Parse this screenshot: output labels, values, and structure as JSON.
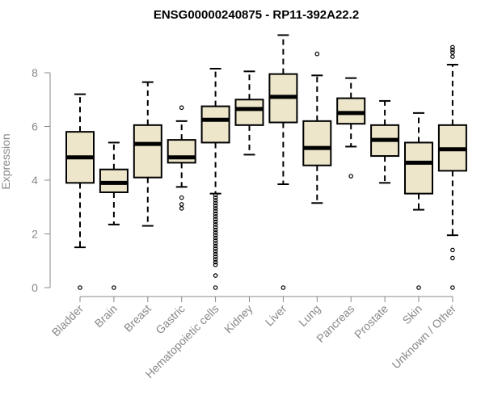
{
  "chart_data": {
    "type": "boxplot",
    "title": "ENSG00000240875 - RP11-392A22.2",
    "xlabel": "",
    "ylabel": "Expression",
    "ylim": [
      0,
      9.5
    ],
    "yticks": [
      0,
      2,
      4,
      6,
      8
    ],
    "box_color": "#ede6ca",
    "categories": [
      "Bladder",
      "Brain",
      "Breast",
      "Gastric",
      "Hematopoietic cells",
      "Kidney",
      "Liver",
      "Lung",
      "Pancreas",
      "Prostate",
      "Skin",
      "Unknown / Other"
    ],
    "boxes": [
      {
        "name": "Bladder",
        "whislo": 1.5,
        "q1": 3.9,
        "med": 4.85,
        "q3": 5.8,
        "whishi": 7.2,
        "fliers": [
          0
        ]
      },
      {
        "name": "Brain",
        "whislo": 2.35,
        "q1": 3.55,
        "med": 3.9,
        "q3": 4.4,
        "whishi": 5.4,
        "fliers": [
          0
        ]
      },
      {
        "name": "Breast",
        "whislo": 2.3,
        "q1": 4.1,
        "med": 5.35,
        "q3": 6.05,
        "whishi": 7.65,
        "fliers": []
      },
      {
        "name": "Gastric",
        "whislo": 3.75,
        "q1": 4.65,
        "med": 4.85,
        "q3": 5.5,
        "whishi": 6.2,
        "fliers": [
          6.7,
          3.35,
          3.1,
          2.95
        ]
      },
      {
        "name": "Hematopoietic cells",
        "whislo": 3.5,
        "q1": 5.4,
        "med": 6.25,
        "q3": 6.75,
        "whishi": 8.15,
        "fliers": [
          0,
          0.45,
          0.85,
          0.95,
          1.05,
          1.15,
          1.25,
          1.35,
          1.45,
          1.55,
          1.65,
          1.75,
          1.85,
          1.95,
          2.05,
          2.15,
          2.25,
          2.35,
          2.45,
          2.55,
          2.65,
          2.75,
          2.85,
          2.95,
          3.05,
          3.15,
          3.25,
          3.35,
          3.45
        ]
      },
      {
        "name": "Kidney",
        "whislo": 4.95,
        "q1": 6.05,
        "med": 6.65,
        "q3": 7.0,
        "whishi": 8.05,
        "fliers": []
      },
      {
        "name": "Liver",
        "whislo": 3.85,
        "q1": 6.15,
        "med": 7.1,
        "q3": 7.95,
        "whishi": 9.4,
        "fliers": [
          0
        ]
      },
      {
        "name": "Lung",
        "whislo": 3.15,
        "q1": 4.55,
        "med": 5.2,
        "q3": 6.2,
        "whishi": 7.9,
        "fliers": [
          8.7
        ]
      },
      {
        "name": "Pancreas",
        "whislo": 5.25,
        "q1": 6.1,
        "med": 6.5,
        "q3": 7.05,
        "whishi": 7.8,
        "fliers": [
          4.15
        ]
      },
      {
        "name": "Prostate",
        "whislo": 3.9,
        "q1": 4.9,
        "med": 5.5,
        "q3": 6.05,
        "whishi": 6.95,
        "fliers": []
      },
      {
        "name": "Skin",
        "whislo": 2.9,
        "q1": 3.5,
        "med": 4.65,
        "q3": 5.4,
        "whishi": 6.5,
        "fliers": [
          0
        ]
      },
      {
        "name": "Unknown / Other",
        "whislo": 1.95,
        "q1": 4.35,
        "med": 5.15,
        "q3": 6.05,
        "whishi": 8.3,
        "fliers": [
          0,
          1.1,
          1.4,
          8.6,
          8.75,
          8.85,
          8.95
        ]
      }
    ]
  }
}
